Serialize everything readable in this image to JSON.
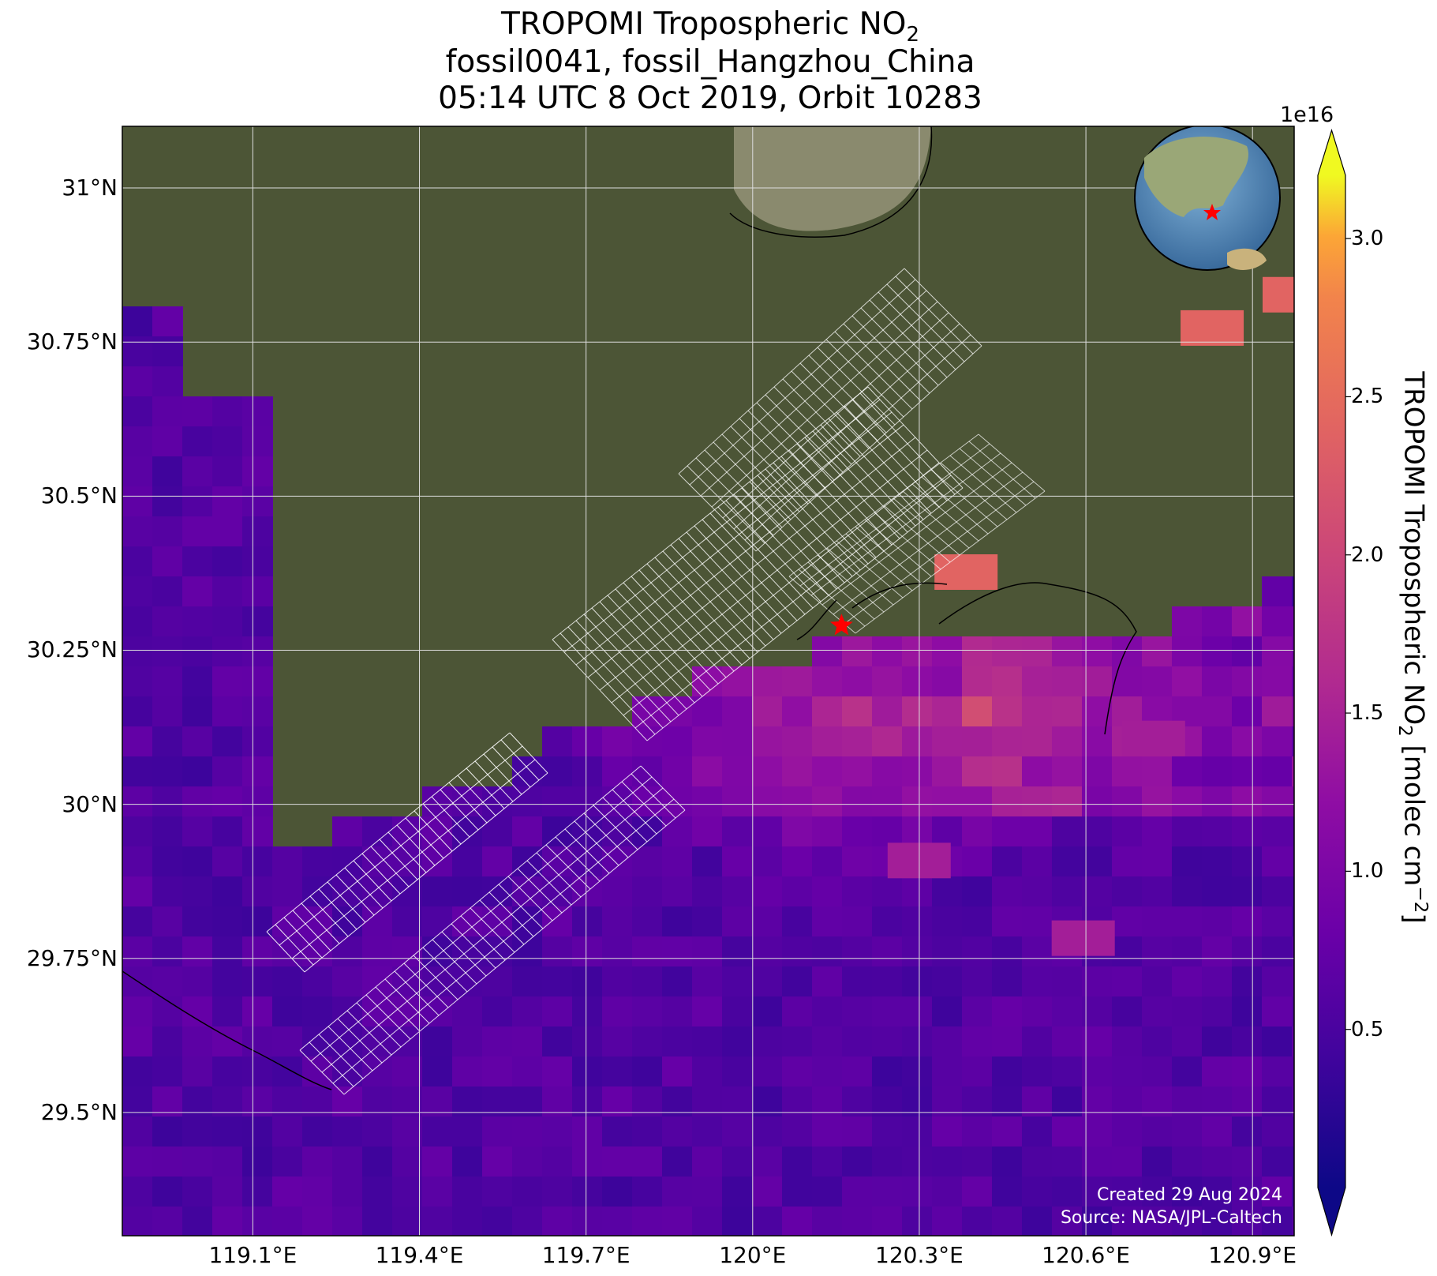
{
  "title": {
    "line1_main": "TROPOMI Tropospheric NO",
    "line1_sub": "2",
    "line2": "fossil0041, fossil_Hangzhou_China",
    "line3": "05:14 UTC 8 Oct 2019, Orbit 10283"
  },
  "map": {
    "extent": {
      "lon_min": 118.865,
      "lon_max": 120.975,
      "lat_min": 29.3,
      "lat_max": 31.1
    },
    "lat_ticks": [
      {
        "value": 31.0,
        "label": "31°N"
      },
      {
        "value": 30.75,
        "label": "30.75°N"
      },
      {
        "value": 30.5,
        "label": "30.5°N"
      },
      {
        "value": 30.25,
        "label": "30.25°N"
      },
      {
        "value": 30.0,
        "label": "30°N"
      },
      {
        "value": 29.75,
        "label": "29.75°N"
      },
      {
        "value": 29.5,
        "label": "29.5°N"
      }
    ],
    "lon_ticks": [
      {
        "value": 119.1,
        "label": "119.1°E"
      },
      {
        "value": 119.4,
        "label": "119.4°E"
      },
      {
        "value": 119.7,
        "label": "119.7°E"
      },
      {
        "value": 120.0,
        "label": "120°E"
      },
      {
        "value": 120.3,
        "label": "120.3°E"
      },
      {
        "value": 120.6,
        "label": "120.6°E"
      },
      {
        "value": 120.9,
        "label": "120.9°E"
      }
    ],
    "target_site": {
      "lon": 120.16,
      "lat": 30.29,
      "marker": "red-star"
    },
    "inset": "globe-icon",
    "colors": {
      "grid": "#dddddd",
      "target": "#ff0000",
      "footprint": "#ffffff"
    }
  },
  "colorbar": {
    "multiplier": "1e16",
    "label_main": "TROPOMI Tropospheric NO",
    "label_sub": "2",
    "label_tail": " [molec cm",
    "label_sup": "−2",
    "label_end": "]",
    "vmin": 0.0,
    "vmax": 3.2,
    "extend": "both",
    "colormap": "plasma",
    "ticks": [
      {
        "value": 0.5,
        "label": "0.5"
      },
      {
        "value": 1.0,
        "label": "1.0"
      },
      {
        "value": 1.5,
        "label": "1.5"
      },
      {
        "value": 2.0,
        "label": "2.0"
      },
      {
        "value": 2.5,
        "label": "2.5"
      },
      {
        "value": 3.0,
        "label": "3.0"
      }
    ]
  },
  "credits": {
    "created": "Created 29 Aug 2024",
    "source": "Source: NASA/JPL-Caltech"
  }
}
